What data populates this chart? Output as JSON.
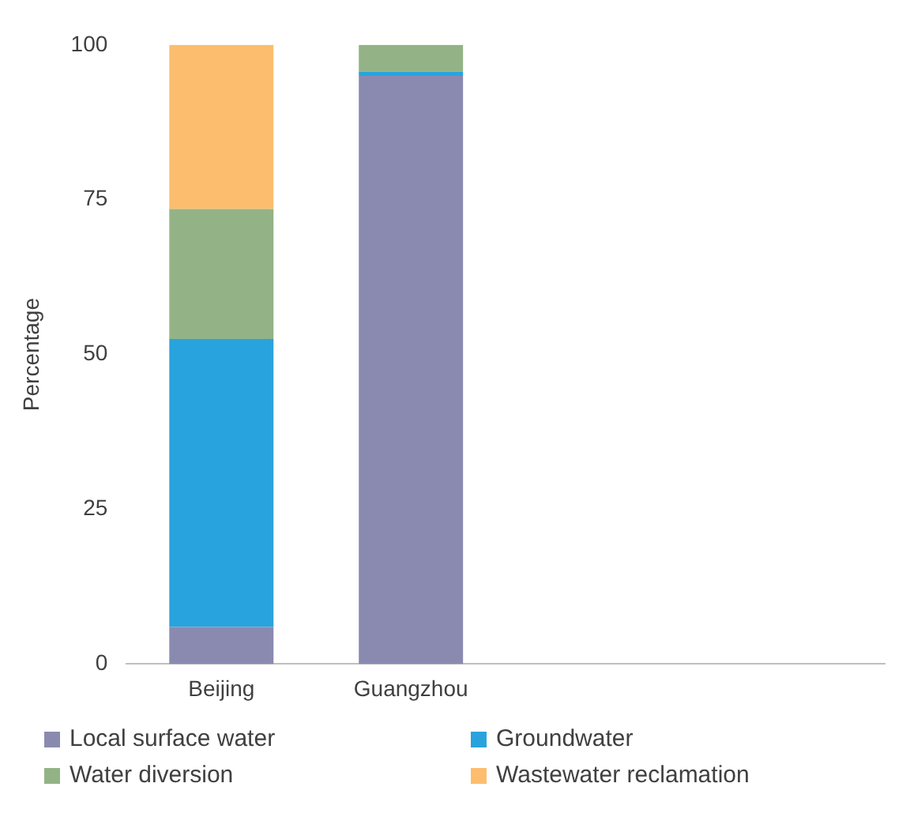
{
  "chart_data": {
    "type": "bar",
    "stacked": true,
    "ylabel": "Percentage",
    "categories": [
      "Beijing",
      "Guangzhou",
      null,
      null
    ],
    "ylim": [
      0,
      100
    ],
    "yticks": [
      0,
      25,
      50,
      75,
      100
    ],
    "grid": false,
    "legend": "bottom",
    "series": [
      {
        "name": "Local surface water",
        "color": "#8a8ab0",
        "values": [
          6,
          95,
          null,
          null
        ]
      },
      {
        "name": "Groundwater",
        "color": "#29a3dd",
        "values": [
          46.5,
          0.7,
          null,
          null
        ]
      },
      {
        "name": "Water diversion",
        "color": "#93b386",
        "values": [
          21,
          4.3,
          null,
          null
        ]
      },
      {
        "name": "Wastewater reclamation",
        "color": "#fdbd6e",
        "values": [
          26.5,
          0,
          null,
          null
        ]
      }
    ]
  }
}
